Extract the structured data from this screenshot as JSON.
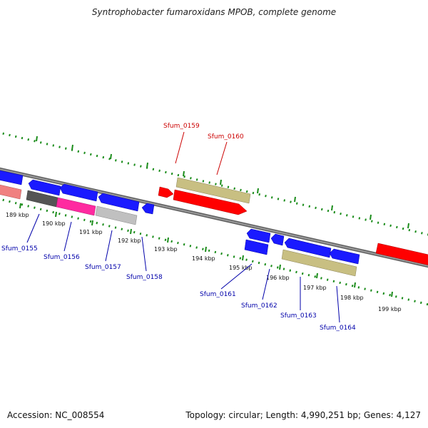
{
  "title": "Syntrophobacter fumaroxidans MPOB, complete genome",
  "footer": {
    "accession": "Accession: NC_008554",
    "summary": "Topology: circular; Length: 4,990,251 bp; Genes: 4,127"
  },
  "kbp_labels": [
    "189 kbp",
    "190 kbp",
    "191 kbp",
    "192 kbp",
    "193 kbp",
    "194 kbp",
    "195 kbp",
    "196 kbp",
    "197 kbp",
    "198 kbp",
    "199 kbp"
  ],
  "gene_labels": {
    "sfum_0155": "Sfum_0155",
    "sfum_0156": "Sfum_0156",
    "sfum_0157": "Sfum_0157",
    "sfum_0158": "Sfum_0158",
    "sfum_0159": "Sfum_0159",
    "sfum_0160": "Sfum_0160",
    "sfum_0161": "Sfum_0161",
    "sfum_0162": "Sfum_0162",
    "sfum_0163": "Sfum_0163",
    "sfum_0164": "Sfum_0164"
  },
  "colors": {
    "forward_label": "#cc0000",
    "reverse_label": "#0000aa",
    "cds_blue": "#1a1aff",
    "cds_red": "#ff0000",
    "rna_khaki": "#c8bf82",
    "pink": "#ff2aa0",
    "salmon": "#f08080",
    "gray": "#c0c0c0",
    "dark_gray": "#555555",
    "tick_green": "#1a8c1a",
    "backbone": "#808080"
  }
}
